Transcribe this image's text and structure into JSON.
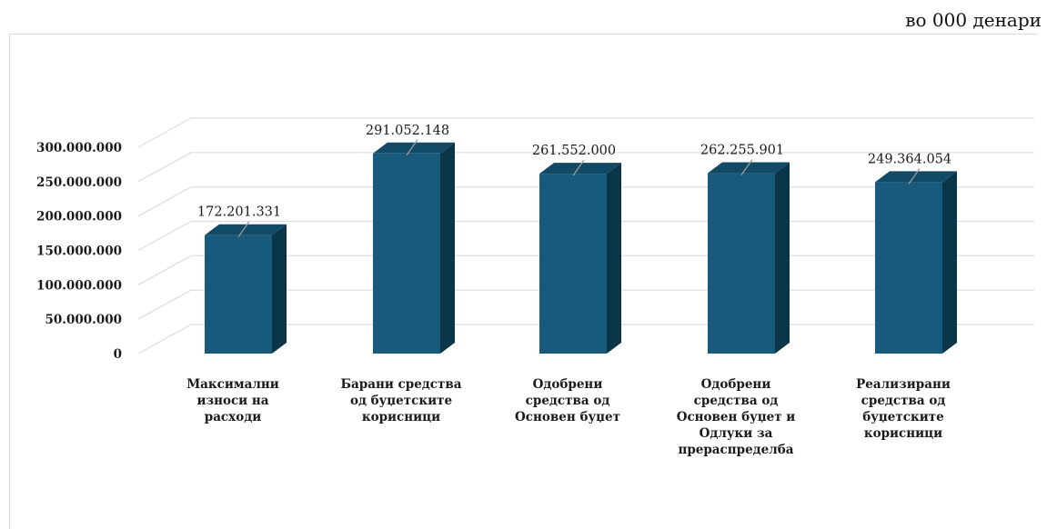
{
  "unit_note": "во 000 денари",
  "chart_data": {
    "type": "bar",
    "categories": [
      [
        "Максимални",
        "износи на",
        "расходи"
      ],
      [
        "Барани средства",
        "од буџетските",
        "корисници"
      ],
      [
        "Одобрени",
        "средства од",
        "Основен буџет"
      ],
      [
        "Одобрени",
        "средства од",
        "Основен буџет и",
        "Одлуки за",
        "прераспределба"
      ],
      [
        "Реализирани",
        "средства од",
        "буџетските",
        "корисници"
      ]
    ],
    "values": [
      172201331,
      291052148,
      261552000,
      262255901,
      249364054
    ],
    "value_labels": [
      "172.201.331",
      "291.052.148",
      "261.552.000",
      "262.255.901",
      "249.364.054"
    ],
    "y_ticks": [
      "0",
      "50.000.000",
      "100.000.000",
      "150.000.000",
      "200.000.000",
      "250.000.000",
      "300.000.000"
    ],
    "ylim": [
      0,
      300000000
    ],
    "grid": true,
    "legend": "none",
    "bar_color_front": "#175a7c",
    "bar_color_side": "#0b3548",
    "bar_color_top": "#124a66",
    "grid_color": "#dedede"
  }
}
